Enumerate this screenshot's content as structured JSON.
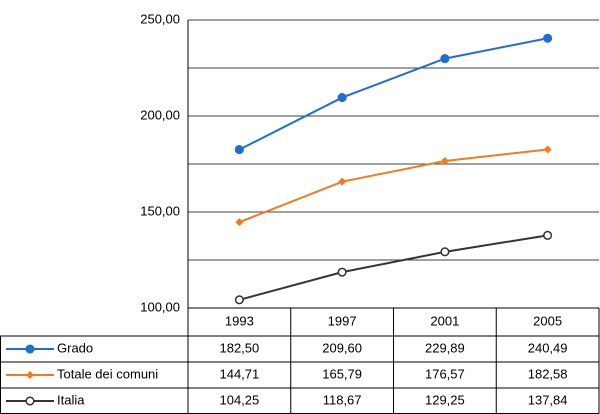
{
  "chart_data": {
    "type": "line",
    "x": [
      "1993",
      "1997",
      "2001",
      "2005"
    ],
    "series": [
      {
        "name": "Grado",
        "color": "#1f6fd0",
        "marker": "circle",
        "values": [
          182.5,
          209.6,
          229.89,
          240.49
        ],
        "value_labels": [
          "182,50",
          "209,60",
          "229,89",
          "240,49"
        ]
      },
      {
        "name": "Totale dei comuni",
        "color": "#f47a1f",
        "marker": "diamond",
        "values": [
          144.71,
          165.79,
          176.57,
          182.58
        ],
        "value_labels": [
          "144,71",
          "165,79",
          "176,57",
          "182,58"
        ]
      },
      {
        "name": "Italia",
        "color": "#333333",
        "marker": "open-circle",
        "values": [
          104.25,
          118.67,
          129.25,
          137.84
        ],
        "value_labels": [
          "104,25",
          "118,67",
          "129,25",
          "137,84"
        ]
      }
    ],
    "ylim": [
      100,
      250
    ],
    "yticks": [
      {
        "value": 100,
        "label": "100,00"
      },
      {
        "value": 150,
        "label": "150,00"
      },
      {
        "value": 200,
        "label": "200,00"
      },
      {
        "value": 250,
        "label": "250,00"
      }
    ],
    "minor_yticks": [
      125,
      175,
      225
    ],
    "grid": true
  }
}
